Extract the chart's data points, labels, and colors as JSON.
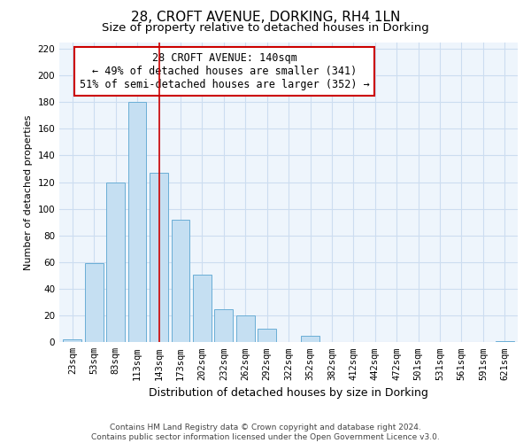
{
  "title": "28, CROFT AVENUE, DORKING, RH4 1LN",
  "subtitle": "Size of property relative to detached houses in Dorking",
  "xlabel": "Distribution of detached houses by size in Dorking",
  "ylabel": "Number of detached properties",
  "bar_labels": [
    "23sqm",
    "53sqm",
    "83sqm",
    "113sqm",
    "143sqm",
    "173sqm",
    "202sqm",
    "232sqm",
    "262sqm",
    "292sqm",
    "322sqm",
    "352sqm",
    "382sqm",
    "412sqm",
    "442sqm",
    "472sqm",
    "501sqm",
    "531sqm",
    "561sqm",
    "591sqm",
    "621sqm"
  ],
  "bar_values": [
    2,
    59,
    120,
    180,
    127,
    92,
    51,
    25,
    20,
    10,
    0,
    5,
    0,
    0,
    0,
    0,
    0,
    0,
    0,
    0,
    1
  ],
  "bar_color": "#c5dff2",
  "bar_edge_color": "#6aaed6",
  "grid_color": "#ccddf0",
  "background_color": "#eef5fc",
  "vline_x_idx": 4,
  "vline_color": "#cc0000",
  "annotation_line1": "28 CROFT AVENUE: 140sqm",
  "annotation_line2": "← 49% of detached houses are smaller (341)",
  "annotation_line3": "51% of semi-detached houses are larger (352) →",
  "annotation_box_facecolor": "white",
  "annotation_box_edgecolor": "#cc0000",
  "ylim": [
    0,
    225
  ],
  "yticks": [
    0,
    20,
    40,
    60,
    80,
    100,
    120,
    140,
    160,
    180,
    200,
    220
  ],
  "footer_line1": "Contains HM Land Registry data © Crown copyright and database right 2024.",
  "footer_line2": "Contains public sector information licensed under the Open Government Licence v3.0.",
  "title_fontsize": 11,
  "subtitle_fontsize": 9.5,
  "xlabel_fontsize": 9,
  "ylabel_fontsize": 8,
  "tick_fontsize": 7.5,
  "annotation_fontsize": 8.5,
  "footer_fontsize": 6.5
}
